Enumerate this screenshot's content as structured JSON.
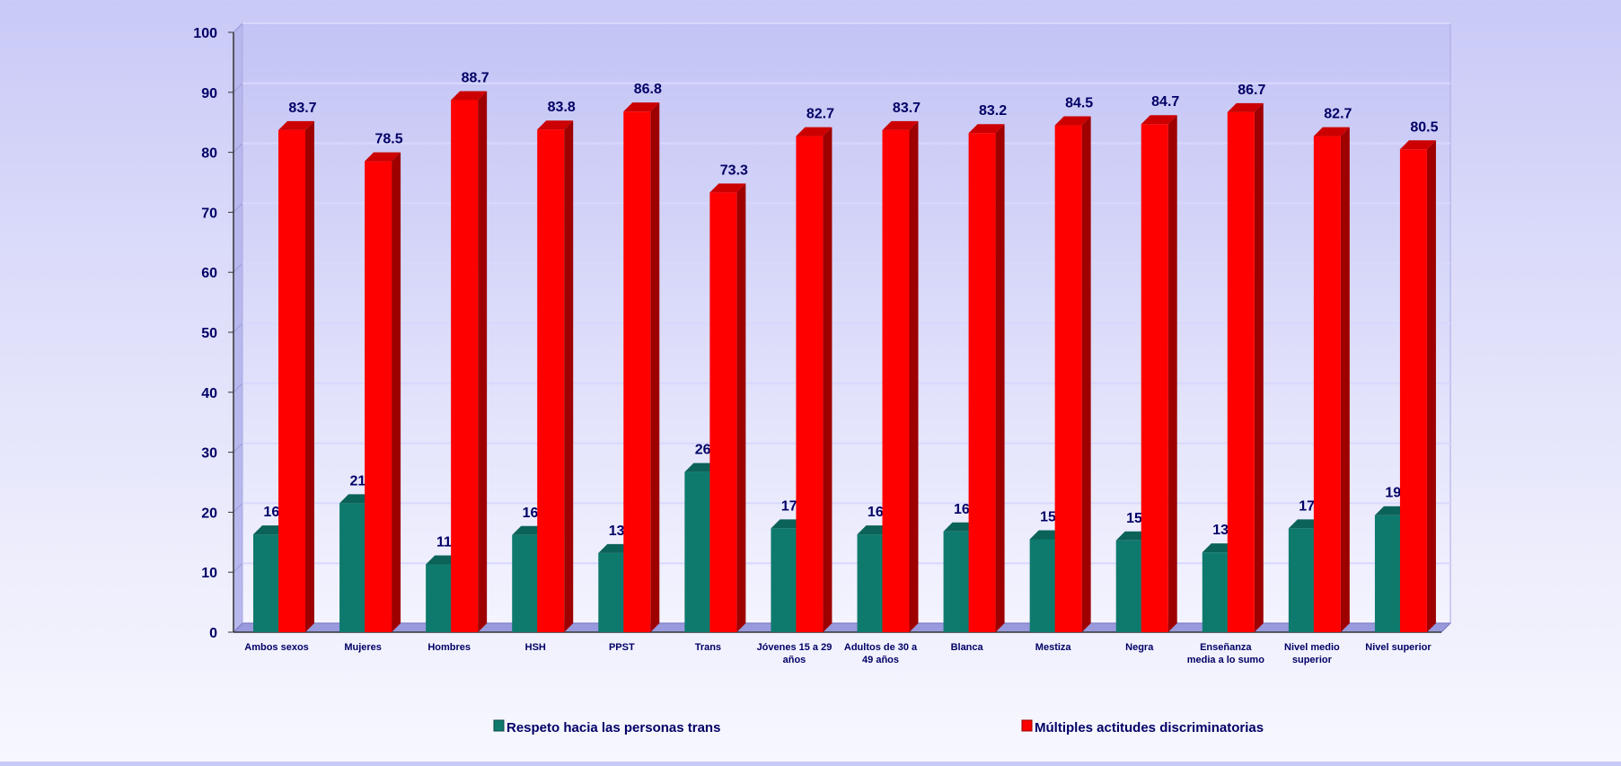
{
  "chart_data": {
    "type": "bar",
    "categories": [
      [
        "Ambos sexos"
      ],
      [
        "Mujeres"
      ],
      [
        "Hombres"
      ],
      [
        "HSH"
      ],
      [
        "PPST"
      ],
      [
        "Trans"
      ],
      [
        "Jóvenes 15 a 29",
        "años"
      ],
      [
        "Adultos de 30 a",
        "49 años"
      ],
      [
        "Blanca"
      ],
      [
        "Mestiza"
      ],
      [
        "Negra"
      ],
      [
        "Enseñanza",
        "media a lo sumo"
      ],
      [
        "Nivel medio",
        "superior"
      ],
      [
        "Nivel superior"
      ]
    ],
    "series": [
      {
        "name": "Respeto hacia las personas trans",
        "color": "#0e7a6e",
        "values": [
          16.3,
          21.5,
          11.3,
          16.2,
          13.2,
          26.7,
          17.3,
          16.3,
          16.8,
          15.5,
          15.3,
          13.3,
          17.3,
          19.5
        ]
      },
      {
        "name": "Múltiples actitudes discriminatorias",
        "color": "#ff0000",
        "values": [
          83.7,
          78.5,
          88.7,
          83.8,
          86.8,
          73.3,
          82.7,
          83.7,
          83.2,
          84.5,
          84.7,
          86.7,
          82.7,
          80.5
        ]
      }
    ],
    "yticks": [
      "0",
      "10",
      "20",
      "30",
      "40",
      "50",
      "60",
      "70",
      "80",
      "90",
      "100"
    ],
    "ylim": [
      0,
      100
    ],
    "grid": true,
    "legend": "bottom",
    "colors": {
      "axis_text": "#000066",
      "grid": "#d8d8ff",
      "plot_wall": "#f1f1ff"
    }
  }
}
